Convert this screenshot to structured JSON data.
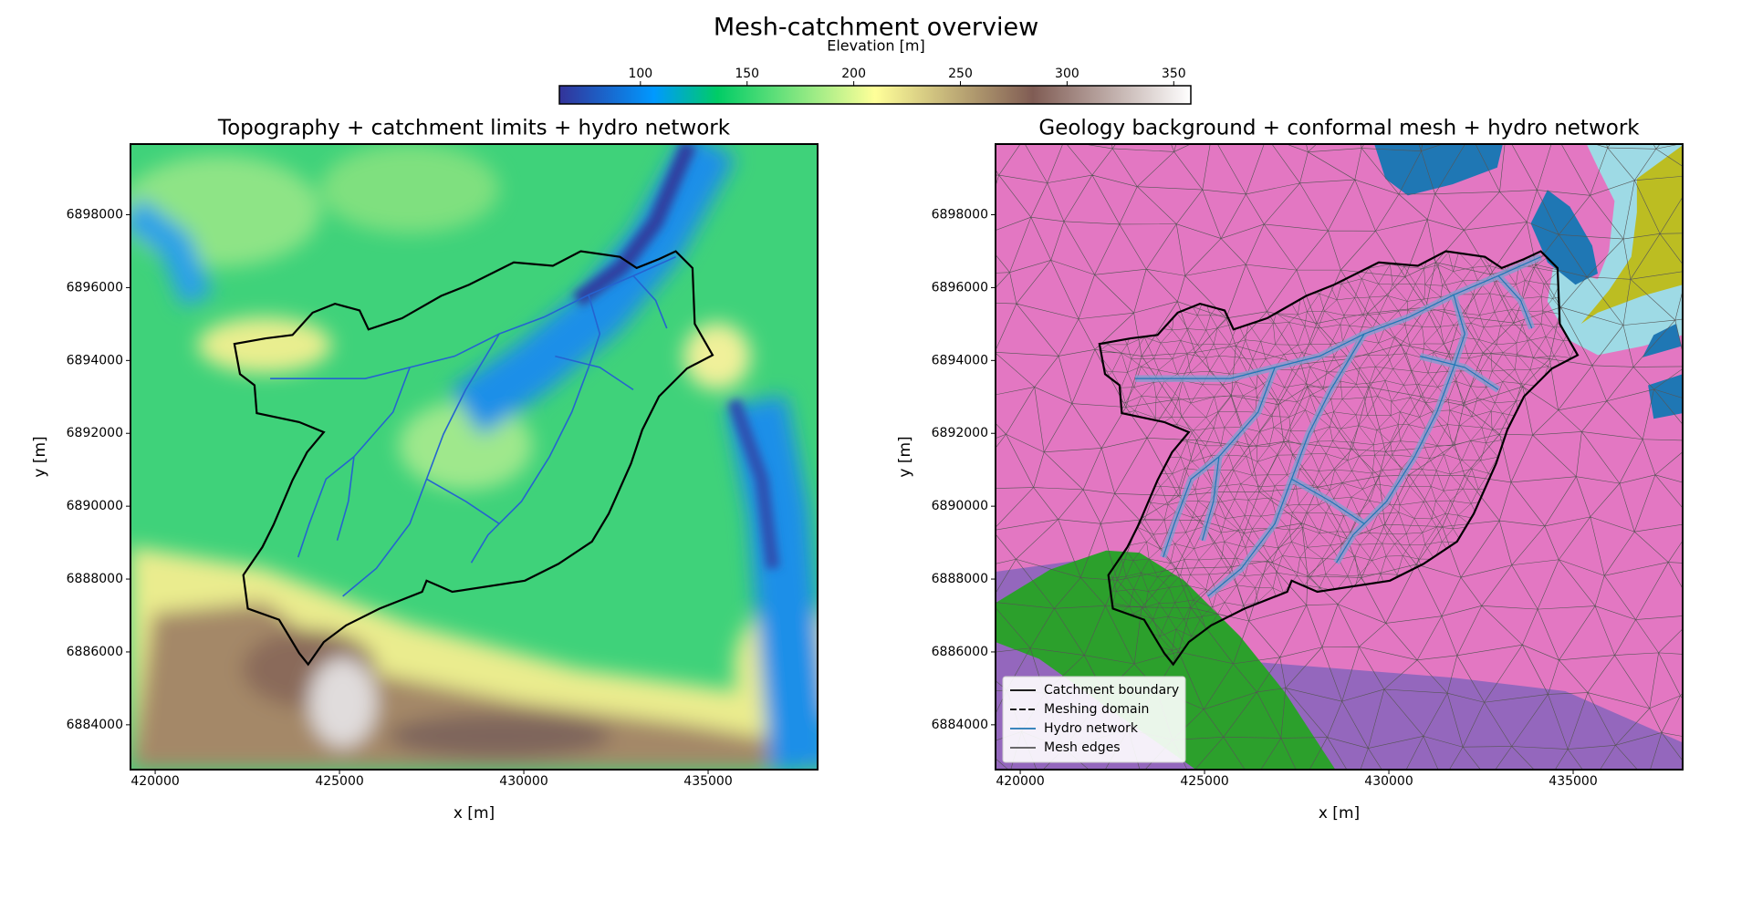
{
  "title": "Mesh-catchment overview",
  "colorbar": {
    "label": "Elevation [m]",
    "lim": [
      62,
      358
    ],
    "ticks": [
      100,
      150,
      200,
      250,
      300,
      350
    ]
  },
  "chart_data": [
    {
      "type": "map",
      "title": "Topography + catchment limits + hydro network",
      "x_label": "x [m]",
      "y_label": "y [m]",
      "xlim": [
        419330,
        437970
      ],
      "ylim": [
        6882770,
        6899940
      ],
      "xticks": [
        420000,
        425000,
        430000,
        435000
      ],
      "yticks": [
        6884000,
        6886000,
        6888000,
        6890000,
        6892000,
        6894000,
        6896000,
        6898000
      ]
    },
    {
      "type": "map",
      "title": "Geology background + conformal mesh + hydro network",
      "x_label": "x [m]",
      "y_label": "y [m]",
      "xlim": [
        419330,
        437970
      ],
      "ylim": [
        6882770,
        6899940
      ],
      "xticks": [
        420000,
        425000,
        430000,
        435000
      ],
      "yticks": [
        6884000,
        6886000,
        6888000,
        6890000,
        6892000,
        6894000,
        6896000,
        6898000
      ],
      "legend": {
        "position": "lower left",
        "entries": [
          {
            "name": "Catchment boundary",
            "color": "#000000",
            "style": "solid"
          },
          {
            "name": "Meshing domain",
            "color": "#000000",
            "style": "dashed"
          },
          {
            "name": "Hydro network",
            "color": "#1f77b4",
            "style": "solid"
          },
          {
            "name": "Mesh edges",
            "color": "#555555",
            "style": "solid"
          }
        ]
      }
    }
  ]
}
